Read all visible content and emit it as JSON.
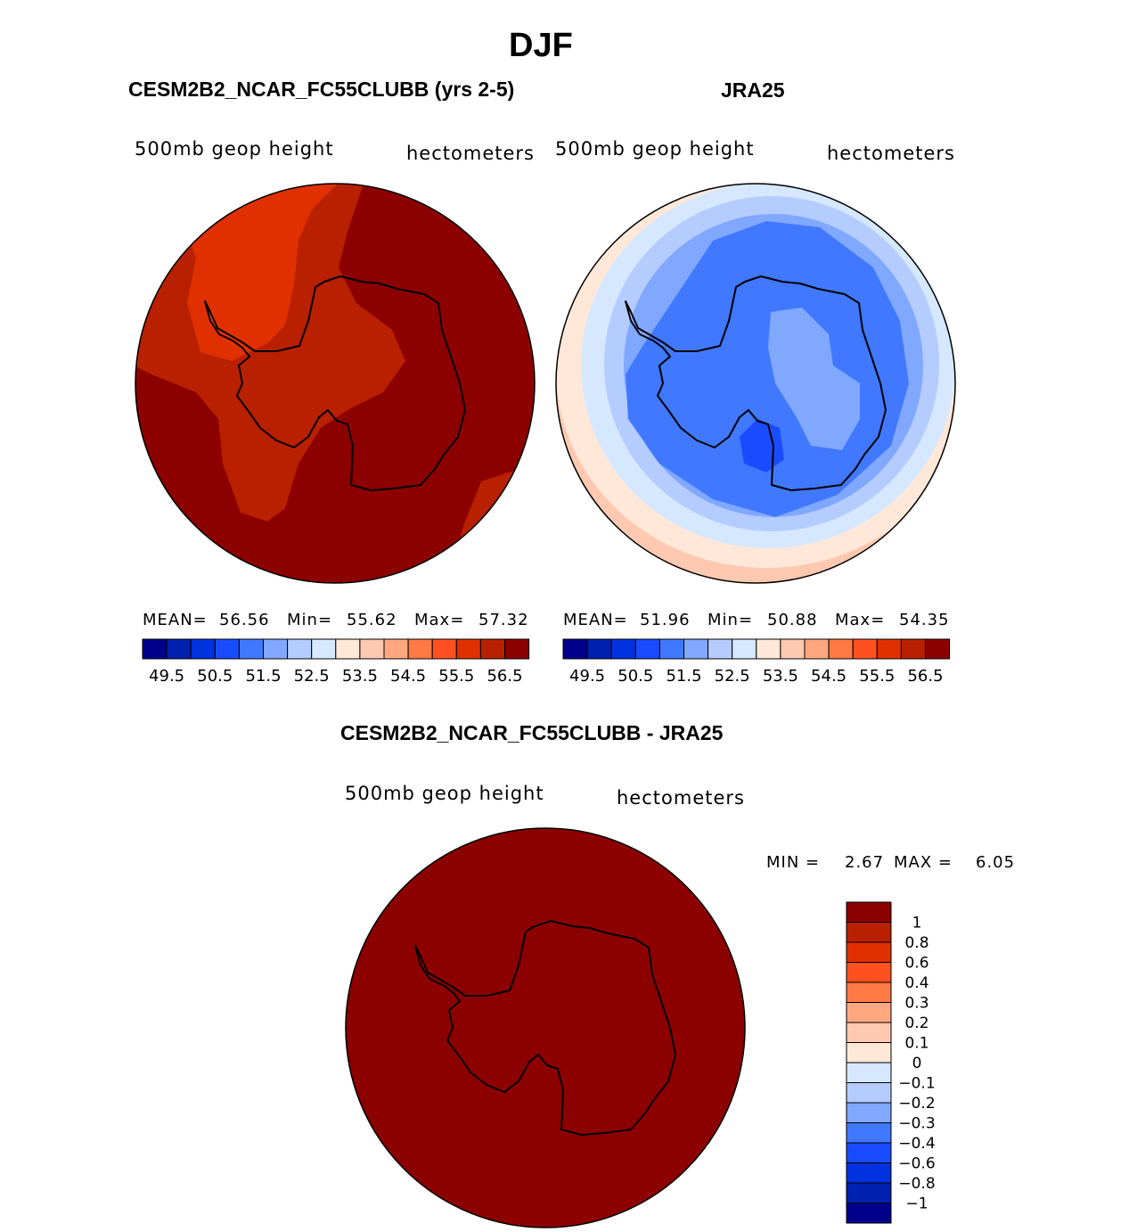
{
  "title": "DJF",
  "panels": [
    {
      "title": "CESM2B2_NCAR_FC55CLUBB (yrs 2-5)",
      "left_label": "500mb  geop  height",
      "right_label": "hectometers",
      "stats": {
        "mean_label": "MEAN=",
        "mean": "56.56",
        "min_label": "Min=",
        "min": "55.62",
        "max_label": "Max=",
        "max": "57.32"
      }
    },
    {
      "title": "JRA25",
      "left_label": "500mb  geop  height",
      "right_label": "hectometers",
      "stats": {
        "mean_label": "MEAN=",
        "mean": "51.96",
        "min_label": "Min=",
        "min": "50.88",
        "max_label": "Max=",
        "max": "54.35"
      }
    },
    {
      "title": "CESM2B2_NCAR_FC55CLUBB - JRA25",
      "left_label": "500mb  geop  height",
      "right_label": "hectometers",
      "stats": {
        "min_label": "MIN  =",
        "min": "2.67",
        "max_label": "MAX  =",
        "max": "6.05"
      }
    }
  ],
  "colors": [
    "#00008c",
    "#0020b0",
    "#0032e0",
    "#1a4cff",
    "#4078ff",
    "#80a8ff",
    "#b4ccff",
    "#d6e8ff",
    "#ffe8d8",
    "#ffc8b0",
    "#ffa880",
    "#ff7a44",
    "#ff5020",
    "#e03000",
    "#b82000",
    "#8c0000"
  ],
  "field_colorbar_labels": [
    "49.5",
    "50.5",
    "51.5",
    "52.5",
    "53.5",
    "54.5",
    "55.5",
    "56.5"
  ],
  "diff_colorbar_labels": [
    "1",
    "0.8",
    "0.6",
    "0.4",
    "0.3",
    "0.2",
    "0.1",
    "0",
    "−0.1",
    "−0.2",
    "−0.3",
    "−0.4",
    "−0.6",
    "−0.8",
    "−1"
  ]
}
